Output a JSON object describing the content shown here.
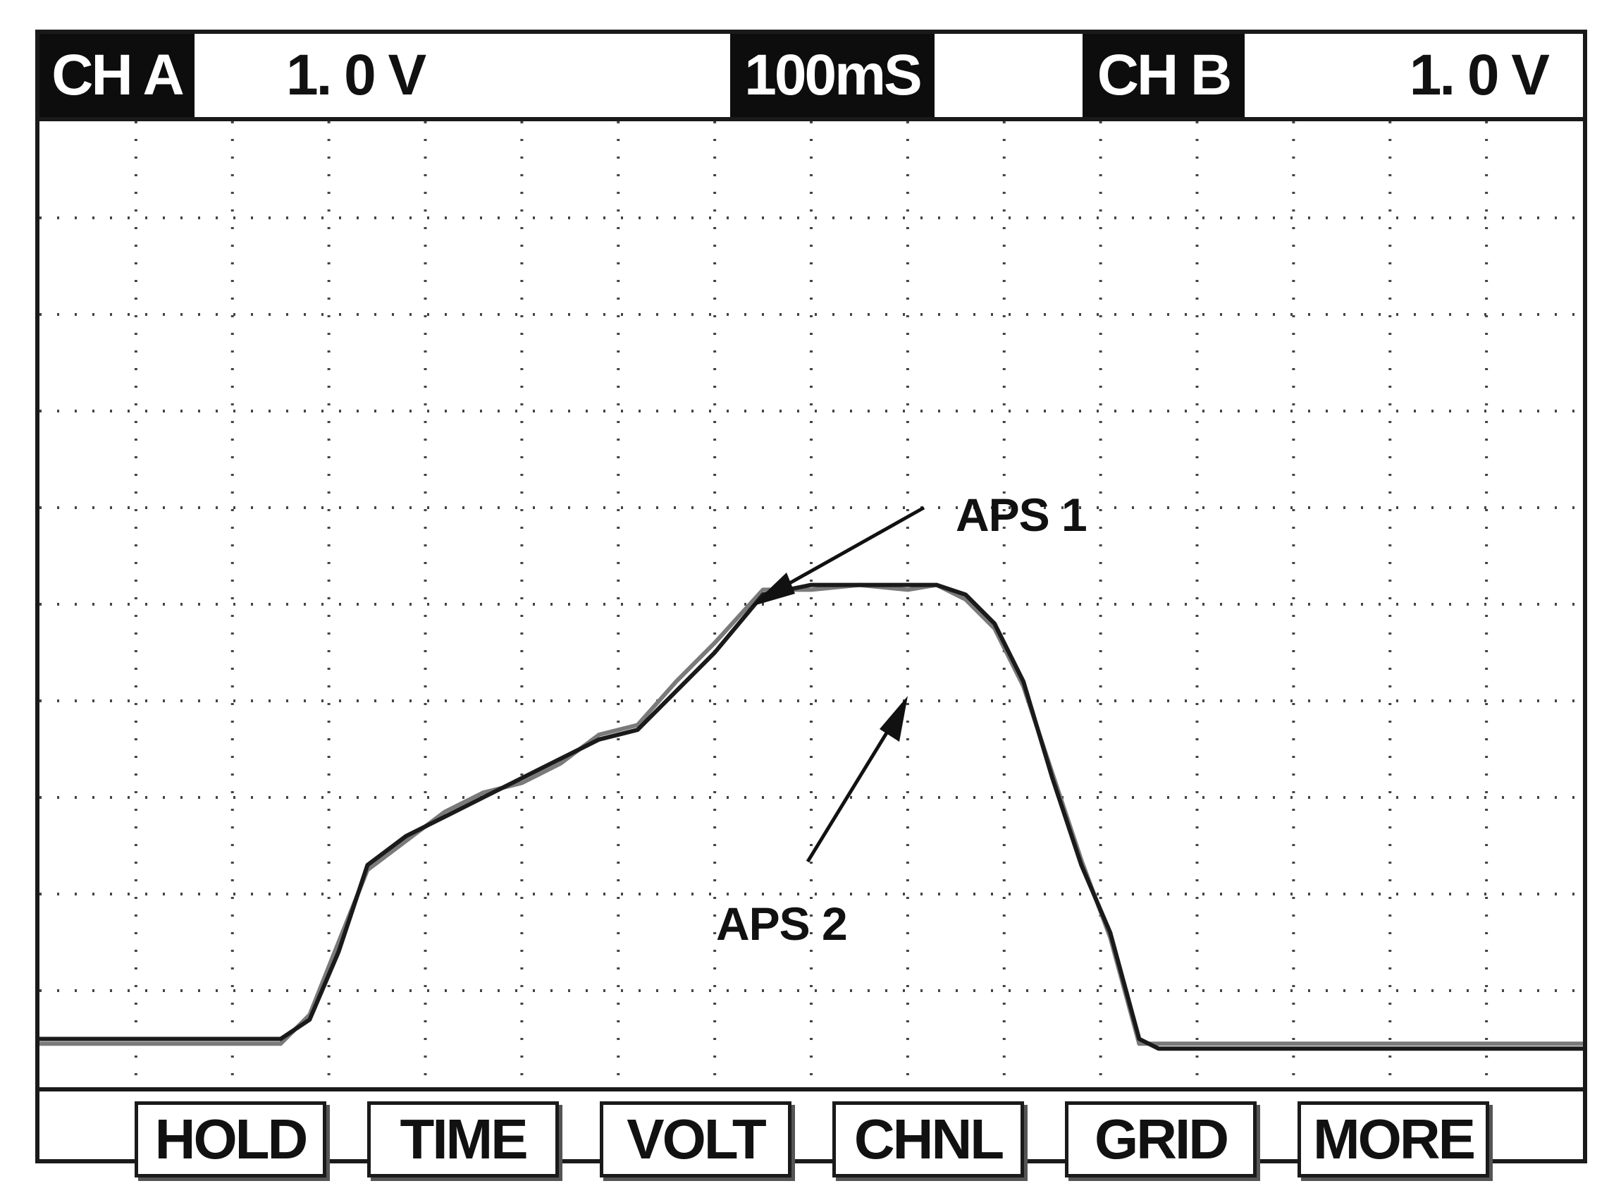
{
  "header": {
    "ch_a_label": "CH A",
    "ch_a_value": "1. 0  V",
    "timebase": "100mS",
    "ch_b_label": "CH B",
    "ch_b_value": "1. 0  V"
  },
  "softkeys": [
    "HOLD",
    "TIME",
    "VOLT",
    "CHNL",
    "GRID",
    "MORE"
  ],
  "annotations": {
    "aps1": "APS 1",
    "aps2": "APS 2"
  },
  "colors": {
    "trace1": "#1a1a1a",
    "trace2": "#7a7a7a",
    "grid": "#444444"
  },
  "chart_data": {
    "type": "line",
    "grid": true,
    "grid_divisions": {
      "x": 16,
      "y": 10
    },
    "series": [
      {
        "name": "APS 1",
        "x": [
          0,
          1,
          2,
          2.5,
          2.8,
          3.1,
          3.4,
          3.8,
          4.2,
          4.6,
          5.0,
          5.4,
          5.8,
          6.2,
          6.6,
          7.0,
          7.5,
          8.0,
          8.5,
          9.0,
          9.3,
          9.6,
          9.9,
          10.2,
          10.5,
          10.8,
          11.1,
          11.4,
          11.6,
          12,
          13,
          14,
          15,
          16
        ],
        "y": [
          0.5,
          0.5,
          0.5,
          0.5,
          0.7,
          1.4,
          2.3,
          2.6,
          2.8,
          3.0,
          3.2,
          3.4,
          3.6,
          3.7,
          4.1,
          4.5,
          5.1,
          5.2,
          5.2,
          5.2,
          5.2,
          5.1,
          4.8,
          4.2,
          3.2,
          2.3,
          1.6,
          0.5,
          0.4,
          0.4,
          0.4,
          0.4,
          0.4,
          0.4
        ]
      },
      {
        "name": "APS 2",
        "x": [
          0,
          1,
          2,
          2.5,
          2.8,
          3.1,
          3.4,
          3.8,
          4.2,
          4.6,
          5.0,
          5.4,
          5.8,
          6.2,
          6.6,
          7.0,
          7.5,
          8.0,
          8.5,
          9.0,
          9.3,
          9.6,
          9.9,
          10.2,
          10.5,
          10.8,
          11.1,
          11.4,
          11.6,
          12,
          13,
          14,
          15,
          16
        ],
        "y": [
          0.45,
          0.45,
          0.45,
          0.45,
          0.75,
          1.5,
          2.25,
          2.55,
          2.85,
          3.05,
          3.15,
          3.35,
          3.65,
          3.75,
          4.2,
          4.6,
          5.15,
          5.15,
          5.2,
          5.15,
          5.2,
          5.05,
          4.75,
          4.15,
          3.25,
          2.35,
          1.55,
          0.45,
          0.45,
          0.45,
          0.45,
          0.45,
          0.45,
          0.45
        ]
      }
    ]
  }
}
